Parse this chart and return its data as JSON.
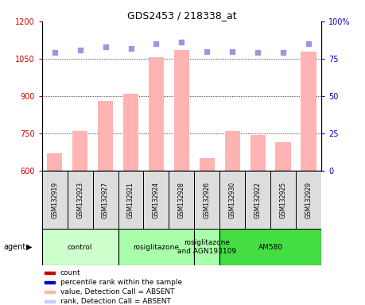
{
  "title": "GDS2453 / 218338_at",
  "samples": [
    "GSM132919",
    "GSM132923",
    "GSM132927",
    "GSM132921",
    "GSM132924",
    "GSM132928",
    "GSM132926",
    "GSM132930",
    "GSM132922",
    "GSM132925",
    "GSM132929"
  ],
  "bar_values": [
    670,
    760,
    880,
    910,
    1055,
    1085,
    650,
    760,
    745,
    715,
    1080
  ],
  "dot_values": [
    79,
    81,
    83,
    82,
    85,
    86,
    80,
    80,
    79,
    79,
    85
  ],
  "ylim_left": [
    600,
    1200
  ],
  "ylim_right": [
    0,
    100
  ],
  "yticks_left": [
    600,
    750,
    900,
    1050,
    1200
  ],
  "yticks_right": [
    0,
    25,
    50,
    75,
    100
  ],
  "bar_color": "#FFB3B3",
  "dot_color": "#9999DD",
  "left_tick_color": "#CC0000",
  "right_tick_color": "#0000CC",
  "groups": [
    {
      "label": "control",
      "start": 0,
      "end": 3,
      "color": "#CCFFCC"
    },
    {
      "label": "rosiglitazone",
      "start": 3,
      "end": 6,
      "color": "#AAFFAA"
    },
    {
      "label": "rosiglitazone\nand AGN193109",
      "start": 6,
      "end": 7,
      "color": "#AAFFAA"
    },
    {
      "label": "AM580",
      "start": 7,
      "end": 11,
      "color": "#44DD44"
    }
  ],
  "legend_colors": [
    "#CC0000",
    "#0000CC",
    "#FFB3B3",
    "#CCCCFF"
  ],
  "legend_labels": [
    "count",
    "percentile rank within the sample",
    "value, Detection Call = ABSENT",
    "rank, Detection Call = ABSENT"
  ]
}
